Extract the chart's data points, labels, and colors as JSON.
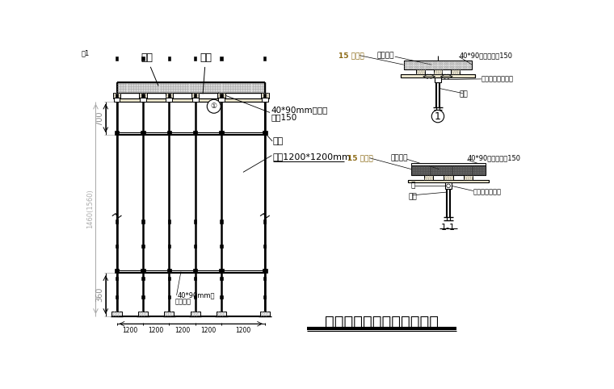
{
  "title": "主体楼板模板支设构造详图",
  "bg_color": "#ffffff",
  "line_color": "#000000",
  "gray_color": "#aaaaaa",
  "page_num": "附1",
  "label_loban": "楼板",
  "label_moban": "模板",
  "label_mufang": "40*90mm木方，",
  "label_mufang2": "间距150",
  "label_henggan": "横杆",
  "label_ligan": "立杆1200*1200mm",
  "label_lower_wood1": "40*90mm方",
  "label_lower_wood2": "间距木方",
  "dim_700": "700",
  "dim_1460": "1460(1560)",
  "dim_360": "360",
  "dims_bottom": [
    "1200",
    "1200",
    "1200",
    "1200",
    "1200"
  ],
  "d1_label_moban": "15 厚模板",
  "d1_label_hnt": "混凝土板",
  "d1_label_mufang": "40*90木方，间距150",
  "d1_label_ding": "顶撑支杆（双钢管",
  "d1_label_li": "立杆",
  "d2_label_moban": "15 厚模板",
  "d2_label_hnt": "混凝土板",
  "d2_label_mufang": "40*90木方，间距150",
  "d2_label_tuo": "托",
  "d2_label_li": "立杆",
  "d2_label_ding": "顶撑托座（双钢",
  "section_label": "1-1"
}
